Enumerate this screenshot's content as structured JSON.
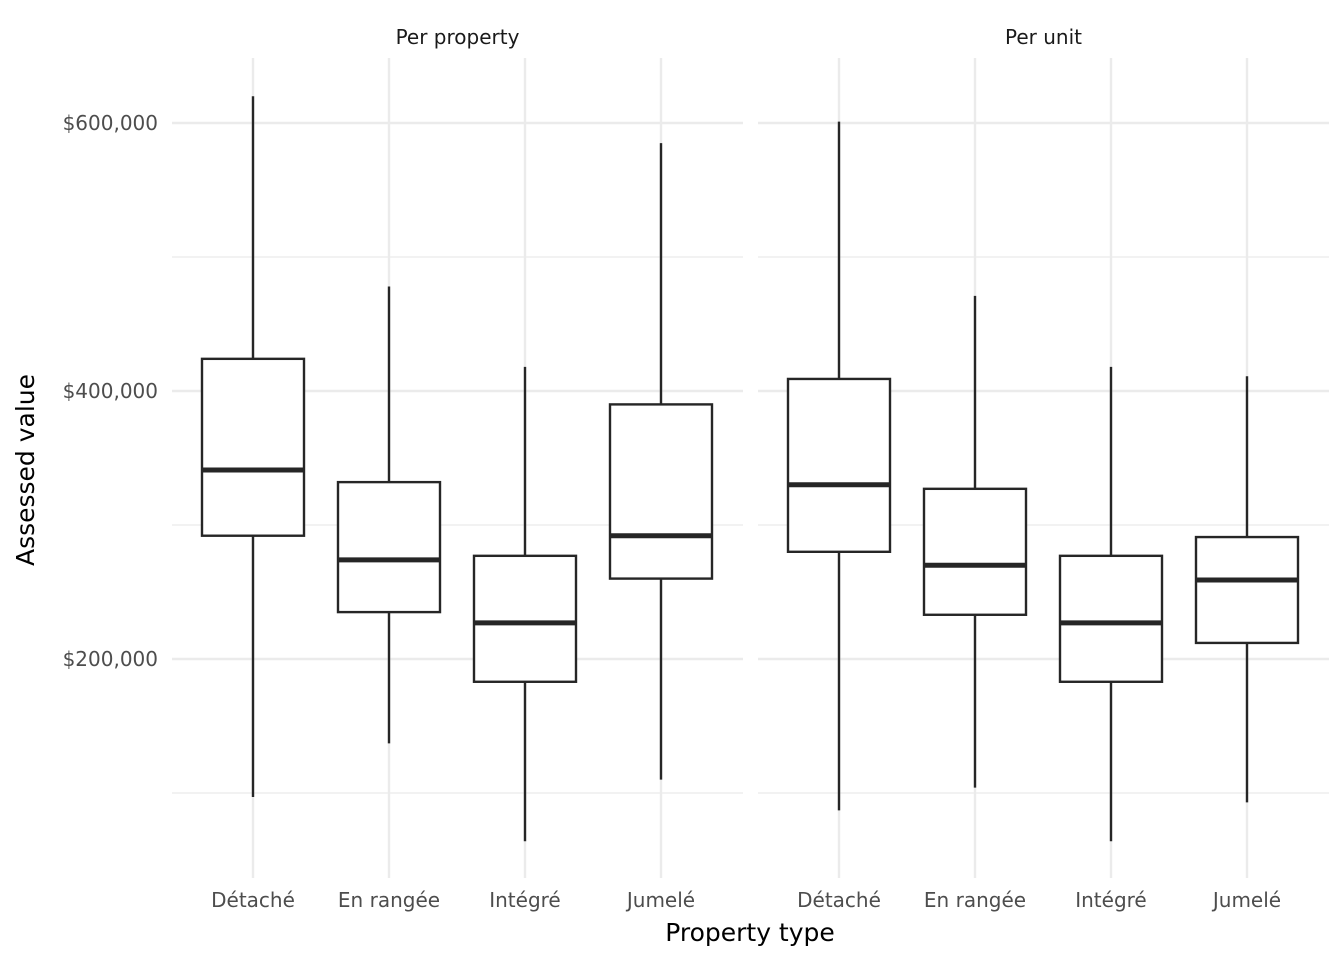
{
  "chart_data": {
    "type": "boxplot",
    "xlabel": "Property type",
    "ylabel": "Assessed value",
    "categories": [
      "Détaché",
      "En rangée",
      "Intégré",
      "Jumelé"
    ],
    "y_ticks": [
      200000,
      400000,
      600000
    ],
    "y_tick_labels": [
      "$200,000",
      "$400,000",
      "$600,000"
    ],
    "ylim": [
      37000,
      650000
    ],
    "grid": true,
    "colors": {
      "box_stroke": "#262626",
      "grid": "#ebebeb",
      "box_fill": "#ffffff"
    },
    "panels": [
      {
        "title": "Per property",
        "boxes": [
          {
            "category": "Détaché",
            "min": 97000,
            "q1": 292000,
            "median": 341000,
            "q3": 424000,
            "max": 620000
          },
          {
            "category": "En rangée",
            "min": 137000,
            "q1": 235000,
            "median": 274000,
            "q3": 332000,
            "max": 478000
          },
          {
            "category": "Intégré",
            "min": 64000,
            "q1": 183000,
            "median": 227000,
            "q3": 277000,
            "max": 418000
          },
          {
            "category": "Jumelé",
            "min": 110000,
            "q1": 260000,
            "median": 292000,
            "q3": 390000,
            "max": 585000
          }
        ]
      },
      {
        "title": "Per unit",
        "boxes": [
          {
            "category": "Détaché",
            "min": 87000,
            "q1": 280000,
            "median": 330000,
            "q3": 409000,
            "max": 601000
          },
          {
            "category": "En rangée",
            "min": 104000,
            "q1": 233000,
            "median": 270000,
            "q3": 327000,
            "max": 471000
          },
          {
            "category": "Intégré",
            "min": 64000,
            "q1": 183000,
            "median": 227000,
            "q3": 277000,
            "max": 418000
          },
          {
            "category": "Jumelé",
            "min": 93000,
            "q1": 212000,
            "median": 259000,
            "q3": 291000,
            "max": 411000
          }
        ]
      }
    ]
  }
}
